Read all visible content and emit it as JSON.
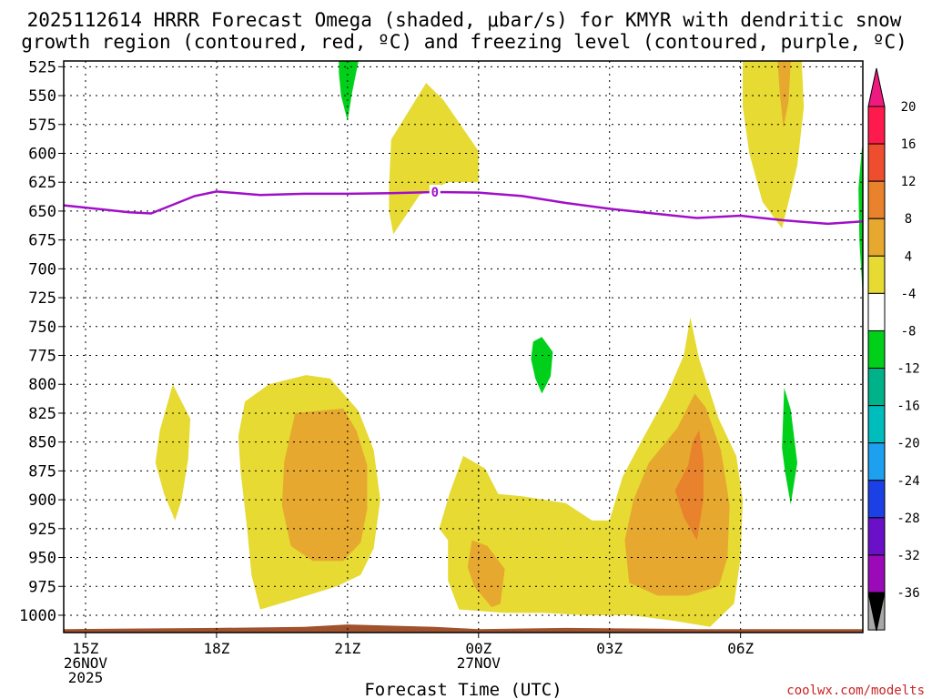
{
  "chart_data": {
    "type": "heatmap",
    "title_line1": "2025112614 HRRR Forecast Omega (shaded, μbar/s) for KMYR with dendritic snow",
    "title_line2": "growth region (contoured, red, ºC) and freezing level (contoured, purple, ºC)",
    "xlabel": "Forecast Time (UTC)",
    "credit": "coolwx.com/modelts",
    "xlim": [
      -0.5,
      17.8
    ],
    "ylim": [
      1015,
      520
    ],
    "y_ticks": [
      525,
      550,
      575,
      600,
      625,
      650,
      675,
      700,
      725,
      750,
      775,
      800,
      825,
      850,
      875,
      900,
      925,
      950,
      975,
      1000
    ],
    "x_ticks": [
      {
        "x": 0,
        "label1": "15Z",
        "label2": "26NOV",
        "label3": "2025"
      },
      {
        "x": 3,
        "label1": "18Z"
      },
      {
        "x": 6,
        "label1": "21Z"
      },
      {
        "x": 9,
        "label1": "00Z",
        "label2": "27NOV"
      },
      {
        "x": 12,
        "label1": "03Z"
      },
      {
        "x": 15,
        "label1": "06Z"
      }
    ],
    "colorbar": {
      "levels": [
        "20",
        "16",
        "12",
        "8",
        "4",
        "-4",
        "-8",
        "-12",
        "-16",
        "-20",
        "-24",
        "-28",
        "-32",
        "-36"
      ],
      "colors": [
        "#ff1a4d",
        "#ee4d2e",
        "#e8822c",
        "#e6a82e",
        "#e6da33",
        "#ffffff",
        "#00d01a",
        "#00b28a",
        "#00bdbd",
        "#1ea0f0",
        "#1a40e6",
        "#6a10c8",
        "#9a0ab8",
        "#a8a8a8"
      ],
      "top_color": "#ee1a80",
      "bottom_color": "#000000"
    },
    "freezing_level": {
      "label": "0",
      "color": "#a010c8",
      "x": [
        -0.5,
        0,
        1,
        1.5,
        2.5,
        3,
        4,
        5,
        6,
        7,
        7.5,
        8,
        9,
        10,
        11,
        12,
        13,
        14,
        15,
        16,
        17,
        17.8
      ],
      "y": [
        645,
        647,
        651,
        652,
        637,
        633,
        636,
        635,
        635,
        634.5,
        634,
        633.5,
        634,
        637,
        643,
        648,
        652,
        656,
        654,
        658,
        661,
        659
      ]
    },
    "omega_regions": [
      {
        "name": "green-top-21z",
        "value": -6,
        "color": "#00d01a",
        "points": [
          [
            5.8,
            520
          ],
          [
            6.25,
            520
          ],
          [
            6.1,
            548
          ],
          [
            6.0,
            572
          ],
          [
            5.85,
            550
          ],
          [
            5.8,
            530
          ]
        ]
      },
      {
        "name": "yellow-upper-23z",
        "value": 6,
        "color": "#e6da33",
        "points": [
          [
            9,
            625
          ],
          [
            9,
            598
          ],
          [
            8.2,
            554
          ],
          [
            7.8,
            539
          ],
          [
            7.0,
            588
          ],
          [
            6.95,
            630
          ],
          [
            6.95,
            650
          ],
          [
            7.05,
            670
          ],
          [
            7.65,
            636
          ],
          [
            8.3,
            625
          ]
        ]
      },
      {
        "name": "yellow-upper-06z",
        "value": 6,
        "color": "#e6da33",
        "points": [
          [
            15.05,
            520
          ],
          [
            16.4,
            520
          ],
          [
            16.45,
            560
          ],
          [
            16.3,
            610
          ],
          [
            16.1,
            642
          ],
          [
            15.95,
            665
          ],
          [
            15.5,
            642
          ],
          [
            15.2,
            600
          ],
          [
            15.05,
            560
          ]
        ]
      },
      {
        "name": "orange-upper-07z",
        "value": 9,
        "color": "#e6a82e",
        "points": [
          [
            15.85,
            520
          ],
          [
            16.15,
            520
          ],
          [
            16.1,
            555
          ],
          [
            15.98,
            578
          ],
          [
            15.9,
            548
          ]
        ]
      },
      {
        "name": "green-right-edge",
        "value": -6,
        "color": "#00d01a",
        "points": [
          [
            17.78,
            595
          ],
          [
            17.8,
            595
          ],
          [
            17.8,
            725
          ],
          [
            17.72,
            675
          ],
          [
            17.7,
            630
          ]
        ]
      },
      {
        "name": "green-mid-01z",
        "value": -6,
        "color": "#00d01a",
        "points": [
          [
            10.25,
            763
          ],
          [
            10.45,
            759
          ],
          [
            10.7,
            772
          ],
          [
            10.65,
            793
          ],
          [
            10.45,
            808
          ],
          [
            10.3,
            795
          ],
          [
            10.2,
            778
          ]
        ]
      },
      {
        "name": "green-low-07z",
        "value": -6,
        "color": "#00d01a",
        "points": [
          [
            16.0,
            803
          ],
          [
            16.15,
            822
          ],
          [
            16.3,
            868
          ],
          [
            16.15,
            904
          ],
          [
            16.02,
            876
          ],
          [
            15.95,
            855
          ]
        ]
      },
      {
        "name": "yellow-17z",
        "value": 5,
        "color": "#e6da33",
        "points": [
          [
            2.0,
            800
          ],
          [
            2.4,
            830
          ],
          [
            2.35,
            865
          ],
          [
            2.2,
            900
          ],
          [
            2.05,
            918
          ],
          [
            1.8,
            895
          ],
          [
            1.6,
            868
          ],
          [
            1.7,
            840
          ]
        ]
      },
      {
        "name": "yellow-20z-block",
        "value": 6,
        "color": "#e6da33",
        "points": [
          [
            3.65,
            815
          ],
          [
            4.2,
            800
          ],
          [
            5.05,
            792
          ],
          [
            5.6,
            795
          ],
          [
            6.25,
            823
          ],
          [
            6.6,
            857
          ],
          [
            6.75,
            900
          ],
          [
            6.6,
            942
          ],
          [
            6.3,
            965
          ],
          [
            5.75,
            975
          ],
          [
            4.9,
            985
          ],
          [
            4.0,
            995
          ],
          [
            3.8,
            965
          ],
          [
            3.7,
            925
          ],
          [
            3.55,
            875
          ],
          [
            3.5,
            845
          ]
        ]
      },
      {
        "name": "orange-20z",
        "value": 10,
        "color": "#e6a82e",
        "points": [
          [
            4.8,
            825
          ],
          [
            5.9,
            821
          ],
          [
            6.2,
            840
          ],
          [
            6.45,
            870
          ],
          [
            6.45,
            908
          ],
          [
            6.3,
            937
          ],
          [
            5.9,
            953
          ],
          [
            5.2,
            953
          ],
          [
            4.7,
            940
          ],
          [
            4.5,
            905
          ],
          [
            4.55,
            867
          ]
        ]
      },
      {
        "name": "yellow-00z-05z-block",
        "value": 6,
        "color": "#e6da33",
        "points": [
          [
            8.35,
            893
          ],
          [
            8.65,
            862
          ],
          [
            9.15,
            873
          ],
          [
            9.45,
            895
          ],
          [
            10.0,
            897
          ],
          [
            11.0,
            903
          ],
          [
            11.6,
            918
          ],
          [
            12.0,
            918
          ],
          [
            12.3,
            880
          ],
          [
            12.75,
            848
          ],
          [
            13.3,
            810
          ],
          [
            13.7,
            775
          ],
          [
            13.85,
            742
          ],
          [
            14.05,
            778
          ],
          [
            14.5,
            830
          ],
          [
            14.9,
            862
          ],
          [
            15.05,
            900
          ],
          [
            15.0,
            950
          ],
          [
            14.85,
            990
          ],
          [
            14.3,
            1010
          ],
          [
            13.5,
            1005
          ],
          [
            12.5,
            1000
          ],
          [
            11.5,
            1000
          ],
          [
            10.5,
            998
          ],
          [
            9.6,
            998
          ],
          [
            8.55,
            995
          ],
          [
            8.3,
            970
          ],
          [
            8.3,
            935
          ],
          [
            8.1,
            925
          ]
        ]
      },
      {
        "name": "orange-00z",
        "value": 9,
        "color": "#e6a82e",
        "points": [
          [
            8.85,
            935
          ],
          [
            9.2,
            940
          ],
          [
            9.6,
            960
          ],
          [
            9.5,
            990
          ],
          [
            9.3,
            993
          ],
          [
            8.9,
            975
          ],
          [
            8.75,
            958
          ]
        ]
      },
      {
        "name": "orange-04z",
        "value": 10,
        "color": "#e6a82e",
        "points": [
          [
            14.2,
            820
          ],
          [
            14.55,
            857
          ],
          [
            14.75,
            905
          ],
          [
            14.7,
            950
          ],
          [
            14.5,
            975
          ],
          [
            13.8,
            983
          ],
          [
            13.1,
            983
          ],
          [
            12.45,
            972
          ],
          [
            12.35,
            935
          ],
          [
            12.55,
            900
          ],
          [
            12.9,
            868
          ],
          [
            13.55,
            838
          ],
          [
            13.95,
            808
          ]
        ]
      },
      {
        "name": "dark-orange-05z",
        "value": 13,
        "color": "#e8822c",
        "points": [
          [
            14.05,
            840
          ],
          [
            14.15,
            865
          ],
          [
            14.15,
            900
          ],
          [
            14.0,
            935
          ],
          [
            13.7,
            915
          ],
          [
            13.5,
            892
          ],
          [
            13.8,
            870
          ],
          [
            13.9,
            850
          ]
        ]
      }
    ],
    "terrain": {
      "color": "#a0522d",
      "x": [
        -0.5,
        3,
        5,
        6,
        8,
        9,
        11,
        14,
        17.8
      ],
      "y": [
        1012,
        1011,
        1010,
        1008,
        1010,
        1012,
        1011,
        1012,
        1012
      ]
    }
  }
}
